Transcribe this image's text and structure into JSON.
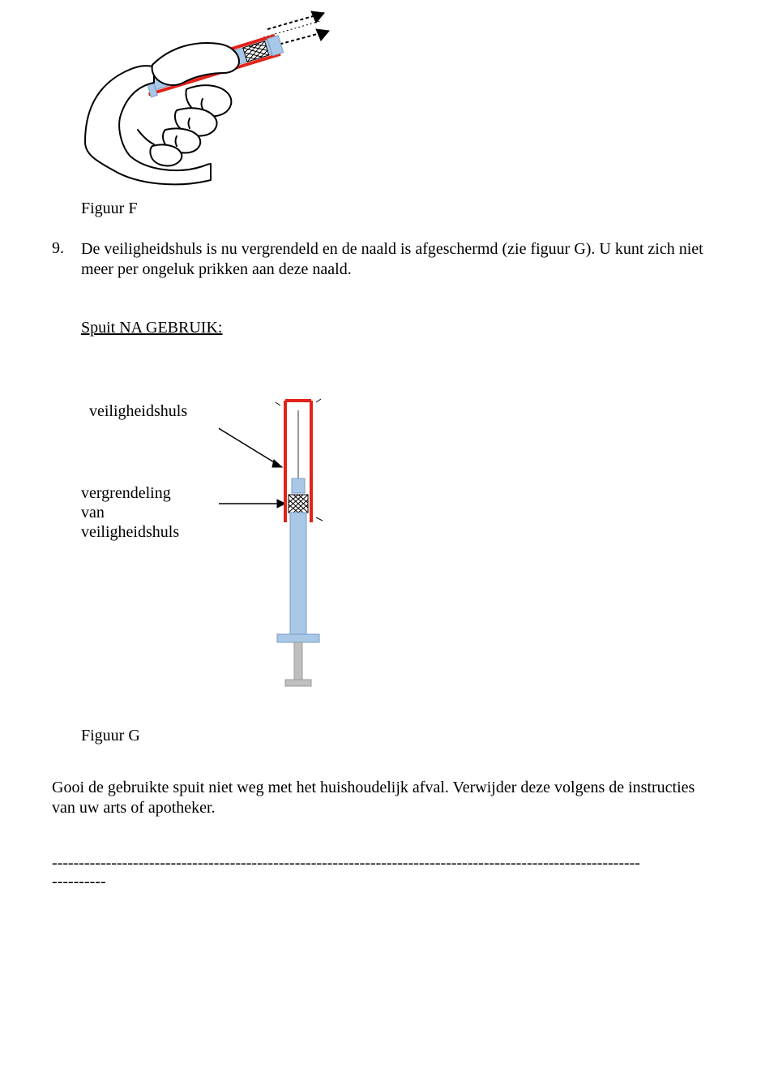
{
  "figureF": {
    "caption": "Figuur F",
    "illustration": {
      "type": "line-drawing",
      "description": "hand-holding-syringe-safety-sleeve",
      "colors": {
        "outline": "#000000",
        "sleeve": "#e32219",
        "body": "#a9c8e8",
        "plunger_hatch": "#000000",
        "skin": "#ffffff"
      },
      "line_width": 2
    }
  },
  "step9": {
    "number": "9.",
    "text": "De veiligheidshuls is nu vergrendeld en de naald is afgeschermd (zie figuur G). U kunt zich niet meer per ongeluk prikken aan deze naald."
  },
  "after_use_heading": "Spuit NA GEBRUIK:",
  "figureG": {
    "caption": "Figuur G",
    "labels": {
      "safety_sleeve": "veiligheidshuls",
      "lock": "vergrendeling\nvan\nveiligheidshuls"
    },
    "diagram": {
      "type": "labeled-diagram",
      "colors": {
        "sleeve": "#e32219",
        "body": "#a9c8e8",
        "body_stroke": "#7a9dbf",
        "lock_hatch": "#000000",
        "needle": "#777777",
        "plunger": "#bfbfbf",
        "arrow": "#000000",
        "background": "#ffffff"
      },
      "sleeve_line_width": 4,
      "arrow_line_width": 1.5
    }
  },
  "disposal_text": "Gooi de gebruikte spuit niet weg met het huishoudelijk afval. Verwijder deze volgens de instructies van uw arts of apotheker.",
  "separator": {
    "line1": "-------------------------------------------------------------------------------------------------------------",
    "line2": "----------"
  }
}
